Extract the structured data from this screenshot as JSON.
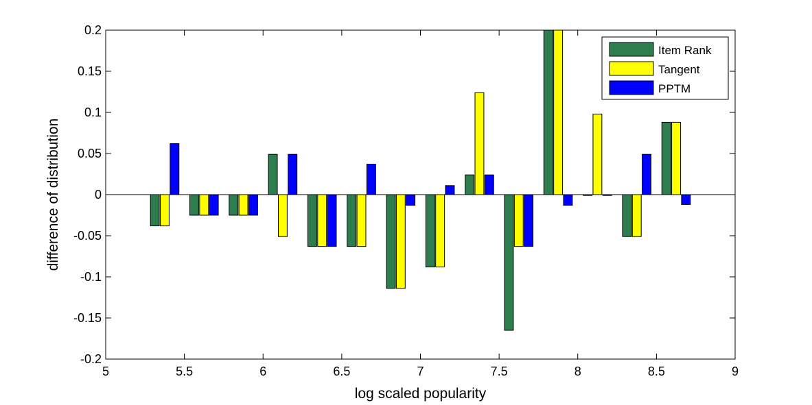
{
  "chart_data": {
    "type": "bar",
    "title": "",
    "xlabel": "log scaled popularity",
    "ylabel": "difference of distribution",
    "xlim": [
      5,
      9
    ],
    "ylim": [
      -0.2,
      0.2
    ],
    "xticks": [
      5,
      5.5,
      6,
      6.5,
      7,
      7.5,
      8,
      8.5,
      9
    ],
    "xtick_labels": [
      "5",
      "5.5",
      "6",
      "6.5",
      "7",
      "7.5",
      "8",
      "8.5",
      "9"
    ],
    "yticks": [
      -0.2,
      -0.15,
      -0.1,
      -0.05,
      0,
      0.05,
      0.1,
      0.15,
      0.2
    ],
    "ytick_labels": [
      "-0.2",
      "-0.15",
      "-0.1",
      "-0.05",
      "0",
      "0.05",
      "0.1",
      "0.15",
      "0.2"
    ],
    "grid": false,
    "legend": "top-right",
    "x": [
      5.375,
      5.625,
      5.875,
      6.125,
      6.375,
      6.625,
      6.875,
      7.125,
      7.375,
      7.625,
      7.875,
      8.125,
      8.375,
      8.625
    ],
    "series": [
      {
        "name": "Item Rank",
        "color": "#2e7d4f",
        "values": [
          -0.038,
          -0.025,
          -0.025,
          0.049,
          -0.063,
          -0.063,
          -0.114,
          -0.088,
          0.024,
          -0.165,
          0.2,
          -0.001,
          -0.051,
          0.088
        ]
      },
      {
        "name": "Tangent",
        "color": "#ffff00",
        "values": [
          -0.038,
          -0.025,
          -0.025,
          -0.051,
          -0.063,
          -0.063,
          -0.114,
          -0.088,
          0.124,
          -0.063,
          0.2,
          0.098,
          -0.051,
          0.088
        ]
      },
      {
        "name": "PPTM",
        "color": "#0000ff",
        "values": [
          0.062,
          -0.025,
          -0.025,
          0.049,
          -0.063,
          0.037,
          -0.013,
          0.011,
          0.024,
          -0.063,
          -0.013,
          -0.001,
          0.049,
          -0.012
        ]
      }
    ]
  }
}
